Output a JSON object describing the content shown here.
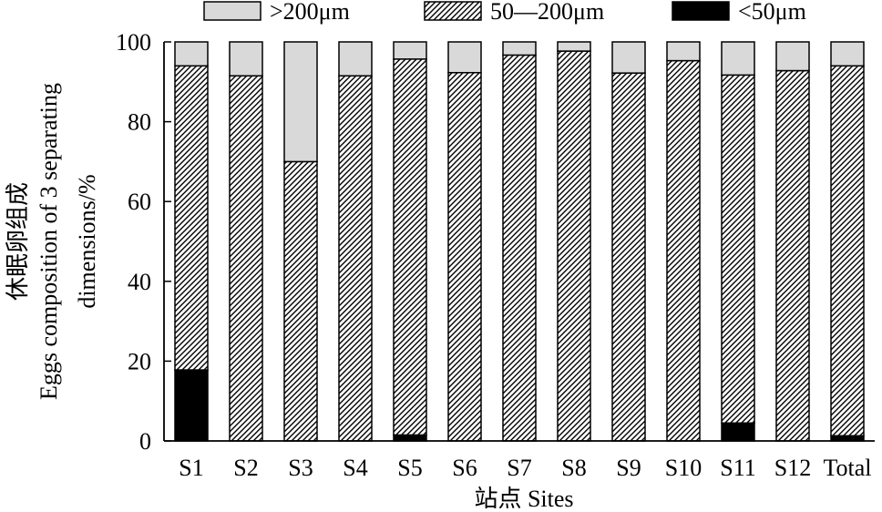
{
  "chart_data": {
    "type": "bar",
    "stacked": true,
    "categories": [
      "S1",
      "S2",
      "S3",
      "S4",
      "S5",
      "S6",
      "S7",
      "S8",
      "S9",
      "S10",
      "S11",
      "S12",
      "Total"
    ],
    "series": [
      {
        "name": "<50μm",
        "values": [
          17.8,
          0,
          0,
          0,
          1.5,
          0,
          0,
          0,
          0,
          0,
          4.5,
          0,
          1.3
        ],
        "color": "#000000",
        "pattern": "solid"
      },
      {
        "name": "50—200μm",
        "values": [
          76.2,
          91.5,
          70,
          91.5,
          94.2,
          92.3,
          96.7,
          97.7,
          92.2,
          95.3,
          87.2,
          92.8,
          92.7
        ],
        "color": "#000000",
        "pattern": "hatch"
      },
      {
        "name": ">200μm",
        "values": [
          6,
          8.5,
          30,
          8.5,
          4.3,
          7.7,
          3.3,
          2.3,
          7.8,
          4.7,
          8.3,
          7.2,
          6
        ],
        "color": "#d9d9d9",
        "pattern": "solid"
      }
    ],
    "legend_order": [
      ">200μm",
      "50—200μm",
      "<50μm"
    ],
    "title": "",
    "xlabel": "站点 Sites",
    "ylabel_lines": [
      "休眠卵组成",
      "Eggs composition of 3 separating",
      "dimensions/%"
    ],
    "ylim": [
      0,
      100
    ],
    "yticks": [
      0,
      20,
      40,
      60,
      80,
      100
    ],
    "grid": false,
    "legend_position": "top"
  }
}
